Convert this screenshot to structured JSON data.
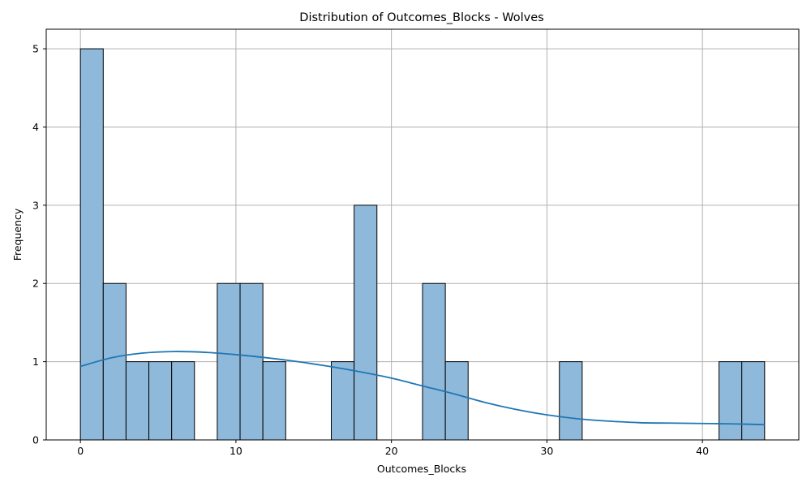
{
  "chart_data": {
    "type": "bar",
    "title": "Distribution of Outcomes_Blocks - Wolves",
    "xlabel": "Outcomes_Blocks",
    "ylabel": "Frequency",
    "xlim": [
      -2.2,
      46.2
    ],
    "ylim": [
      0,
      5.25
    ],
    "grid": true,
    "x_ticks": [
      0,
      10,
      20,
      30,
      40
    ],
    "y_ticks": [
      0,
      1,
      2,
      3,
      4,
      5
    ],
    "bin_edges": [
      0,
      1.467,
      2.933,
      4.4,
      5.867,
      7.333,
      8.8,
      10.267,
      11.733,
      13.2,
      14.667,
      16.133,
      17.6,
      19.067,
      20.533,
      22.0,
      23.467,
      24.933,
      26.4,
      27.867,
      29.333,
      30.8,
      32.267,
      33.733,
      35.2,
      36.667,
      38.133,
      39.6,
      41.067,
      42.533,
      44.0
    ],
    "counts": [
      5,
      2,
      1,
      1,
      1,
      0,
      2,
      2,
      1,
      0,
      0,
      1,
      3,
      0,
      0,
      2,
      1,
      0,
      0,
      0,
      0,
      1,
      0,
      0,
      0,
      0,
      0,
      0,
      1,
      1
    ],
    "kde": {
      "x": [
        0,
        2,
        4,
        6,
        8,
        10,
        12,
        14,
        16,
        18,
        20,
        22,
        24,
        26,
        28,
        30,
        32,
        34,
        36,
        38,
        40,
        42,
        44
      ],
      "y": [
        0.94,
        1.05,
        1.11,
        1.13,
        1.12,
        1.09,
        1.05,
        1.0,
        0.94,
        0.87,
        0.79,
        0.69,
        0.59,
        0.48,
        0.39,
        0.32,
        0.27,
        0.24,
        0.22,
        0.215,
        0.21,
        0.205,
        0.195
      ]
    },
    "colors": {
      "bar_fill": "#8fb9da",
      "bar_edge": "#000000",
      "kde_line": "#1f77b4",
      "grid": "#b0b0b0"
    }
  }
}
